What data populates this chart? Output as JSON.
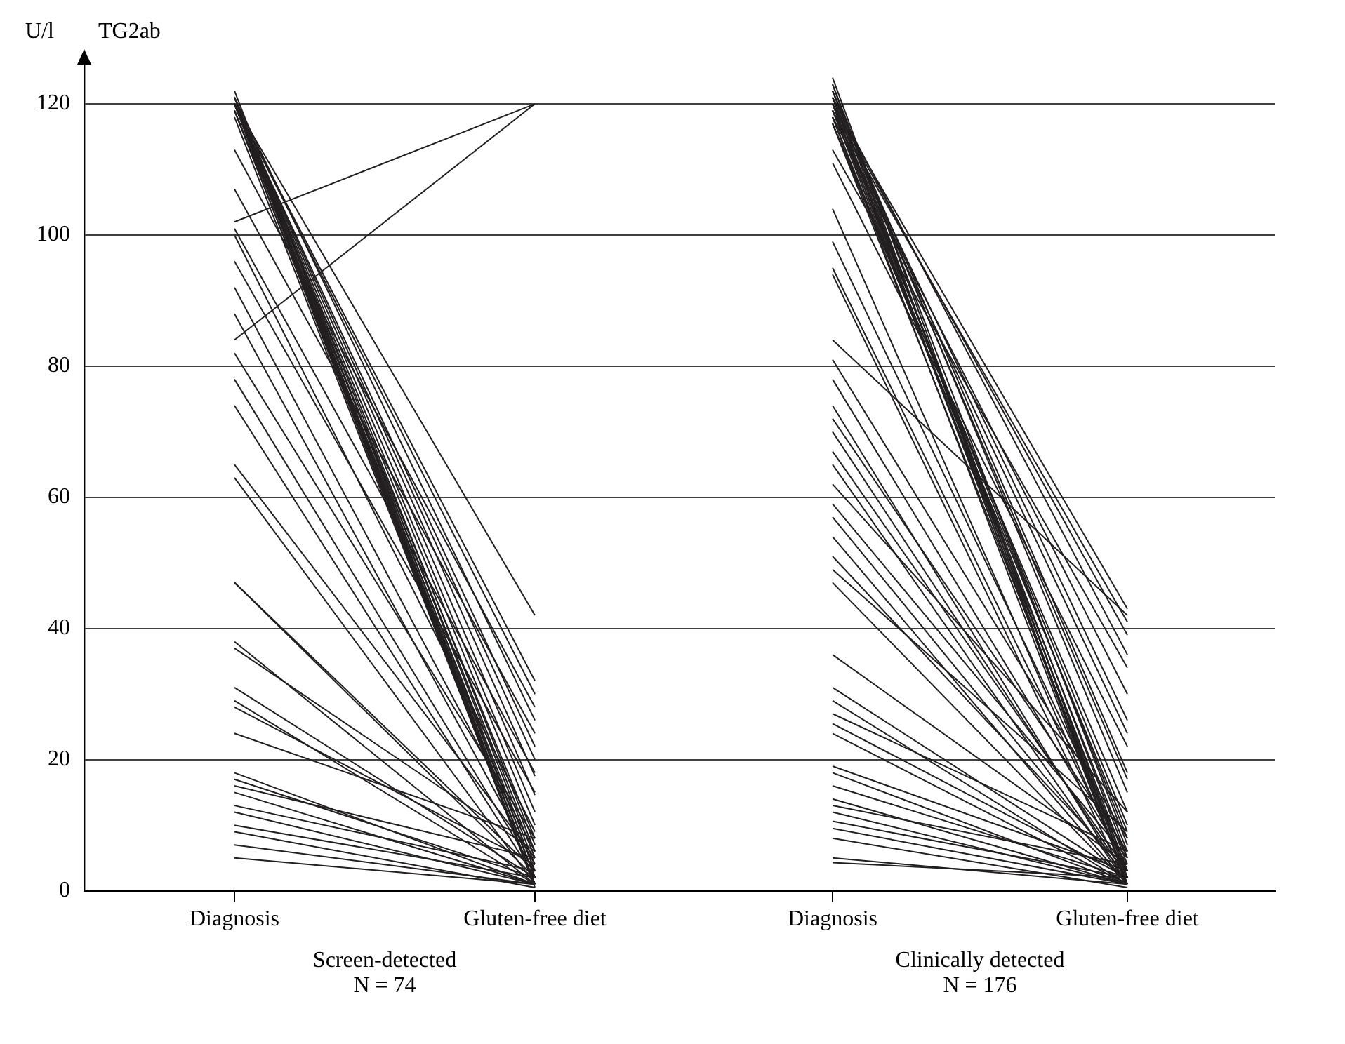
{
  "chart_data": [
    {
      "type": "line",
      "title": "TG2ab",
      "ylabel": "U/l",
      "xlabel": "Screen-detected",
      "annotations": [
        "N = 74"
      ],
      "categories": [
        "Diagnosis",
        "Gluten-free diet"
      ],
      "color": "#231f20",
      "marker": "none",
      "ylim": [
        0,
        126
      ],
      "yticks": [
        0,
        20,
        40,
        60,
        80,
        100,
        120
      ],
      "grid": "y",
      "series": [
        {
          "values": [
            121,
            2
          ]
        },
        {
          "values": [
            120,
            1
          ]
        },
        {
          "values": [
            120,
            3
          ]
        },
        {
          "values": [
            121,
            5
          ]
        },
        {
          "values": [
            120,
            0.5
          ]
        },
        {
          "values": [
            119,
            2
          ]
        },
        {
          "values": [
            120,
            4
          ]
        },
        {
          "values": [
            121,
            1
          ]
        },
        {
          "values": [
            120,
            6
          ]
        },
        {
          "values": [
            119,
            8
          ]
        },
        {
          "values": [
            120,
            10
          ]
        },
        {
          "values": [
            121,
            7
          ]
        },
        {
          "values": [
            120,
            2
          ]
        },
        {
          "values": [
            119,
            1
          ]
        },
        {
          "values": [
            120,
            42
          ]
        },
        {
          "values": [
            120,
            32
          ]
        },
        {
          "values": [
            120,
            30
          ]
        },
        {
          "values": [
            121,
            26
          ]
        },
        {
          "values": [
            120,
            22
          ]
        },
        {
          "values": [
            120,
            20
          ]
        },
        {
          "values": [
            120,
            17.5
          ]
        },
        {
          "values": [
            120,
            14.6
          ]
        },
        {
          "values": [
            120,
            12
          ]
        },
        {
          "values": [
            122,
            3
          ]
        },
        {
          "values": [
            118,
            1
          ]
        },
        {
          "values": [
            113,
            28
          ]
        },
        {
          "values": [
            107,
            24
          ]
        },
        {
          "values": [
            102,
            120
          ]
        },
        {
          "values": [
            101,
            18
          ]
        },
        {
          "values": [
            100,
            9
          ]
        },
        {
          "values": [
            96,
            15
          ]
        },
        {
          "values": [
            92,
            6
          ]
        },
        {
          "values": [
            88,
            4
          ]
        },
        {
          "values": [
            84,
            120
          ]
        },
        {
          "values": [
            82,
            8
          ]
        },
        {
          "values": [
            78,
            3
          ]
        },
        {
          "values": [
            74,
            2
          ]
        },
        {
          "values": [
            65,
            5
          ]
        },
        {
          "values": [
            63,
            1
          ]
        },
        {
          "values": [
            47,
            2
          ]
        },
        {
          "values": [
            47,
            3
          ]
        },
        {
          "values": [
            38,
            1
          ]
        },
        {
          "values": [
            37,
            6
          ]
        },
        {
          "values": [
            31,
            2
          ]
        },
        {
          "values": [
            29,
            1
          ]
        },
        {
          "values": [
            28,
            4
          ]
        },
        {
          "values": [
            24,
            8
          ]
        },
        {
          "values": [
            18,
            1
          ]
        },
        {
          "values": [
            17,
            2
          ]
        },
        {
          "values": [
            16,
            5
          ]
        },
        {
          "values": [
            15,
            1
          ]
        },
        {
          "values": [
            13,
            3
          ]
        },
        {
          "values": [
            12,
            1
          ]
        },
        {
          "values": [
            10,
            2
          ]
        },
        {
          "values": [
            9,
            0.5
          ]
        },
        {
          "values": [
            7,
            1
          ]
        },
        {
          "values": [
            5,
            1
          ]
        }
      ]
    },
    {
      "type": "line",
      "xlabel": "Clinically detected",
      "annotations": [
        "N = 176"
      ],
      "categories": [
        "Diagnosis",
        "Gluten-free diet"
      ],
      "color": "#231f20",
      "marker": "none",
      "yticks": [
        0,
        20,
        40,
        60,
        80,
        100,
        120
      ],
      "grid": "y",
      "tick_labels": "x",
      "series": [
        {
          "values": [
            124,
            2
          ]
        },
        {
          "values": [
            123,
            1
          ]
        },
        {
          "values": [
            122,
            3
          ]
        },
        {
          "values": [
            121,
            5
          ]
        },
        {
          "values": [
            121,
            1
          ]
        },
        {
          "values": [
            120,
            8
          ]
        },
        {
          "values": [
            120,
            2
          ]
        },
        {
          "values": [
            119,
            4
          ]
        },
        {
          "values": [
            119,
            10
          ]
        },
        {
          "values": [
            118,
            6
          ]
        },
        {
          "values": [
            118,
            1
          ]
        },
        {
          "values": [
            117,
            3
          ]
        },
        {
          "values": [
            117,
            12
          ]
        },
        {
          "values": [
            122,
            15
          ]
        },
        {
          "values": [
            121,
            17
          ]
        },
        {
          "values": [
            120,
            43
          ]
        },
        {
          "values": [
            119,
            41
          ]
        },
        {
          "values": [
            120,
            39
          ]
        },
        {
          "values": [
            121,
            36
          ]
        },
        {
          "values": [
            118,
            30
          ]
        },
        {
          "values": [
            120,
            26
          ]
        },
        {
          "values": [
            119,
            24
          ]
        },
        {
          "values": [
            122,
            18
          ]
        },
        {
          "values": [
            117,
            9
          ]
        },
        {
          "values": [
            123,
            7
          ]
        },
        {
          "values": [
            113,
            34
          ]
        },
        {
          "values": [
            111,
            22
          ]
        },
        {
          "values": [
            104,
            2
          ]
        },
        {
          "values": [
            99,
            5
          ]
        },
        {
          "values": [
            95,
            3
          ]
        },
        {
          "values": [
            94,
            1
          ]
        },
        {
          "values": [
            84,
            42
          ]
        },
        {
          "values": [
            81,
            8
          ]
        },
        {
          "values": [
            78,
            4
          ]
        },
        {
          "values": [
            74,
            1
          ]
        },
        {
          "values": [
            72,
            6
          ]
        },
        {
          "values": [
            70,
            2
          ]
        },
        {
          "values": [
            67,
            3
          ]
        },
        {
          "values": [
            65,
            1
          ]
        },
        {
          "values": [
            62,
            12
          ]
        },
        {
          "values": [
            59,
            5
          ]
        },
        {
          "values": [
            57,
            2
          ]
        },
        {
          "values": [
            54,
            1
          ]
        },
        {
          "values": [
            51,
            3
          ]
        },
        {
          "values": [
            49,
            9
          ]
        },
        {
          "values": [
            47,
            1
          ]
        },
        {
          "values": [
            36,
            4
          ]
        },
        {
          "values": [
            31,
            2
          ]
        },
        {
          "values": [
            29,
            1
          ]
        },
        {
          "values": [
            27,
            6
          ]
        },
        {
          "values": [
            25.5,
            2
          ]
        },
        {
          "values": [
            24,
            1
          ]
        },
        {
          "values": [
            19,
            3
          ]
        },
        {
          "values": [
            18,
            1
          ]
        },
        {
          "values": [
            16,
            2
          ]
        },
        {
          "values": [
            14,
            1
          ]
        },
        {
          "values": [
            13,
            4
          ]
        },
        {
          "values": [
            12,
            1
          ]
        },
        {
          "values": [
            10.6,
            2
          ]
        },
        {
          "values": [
            9.5,
            1
          ]
        },
        {
          "values": [
            8,
            0.5
          ]
        },
        {
          "values": [
            5,
            1
          ]
        },
        {
          "values": [
            4.3,
            2
          ]
        }
      ]
    }
  ]
}
